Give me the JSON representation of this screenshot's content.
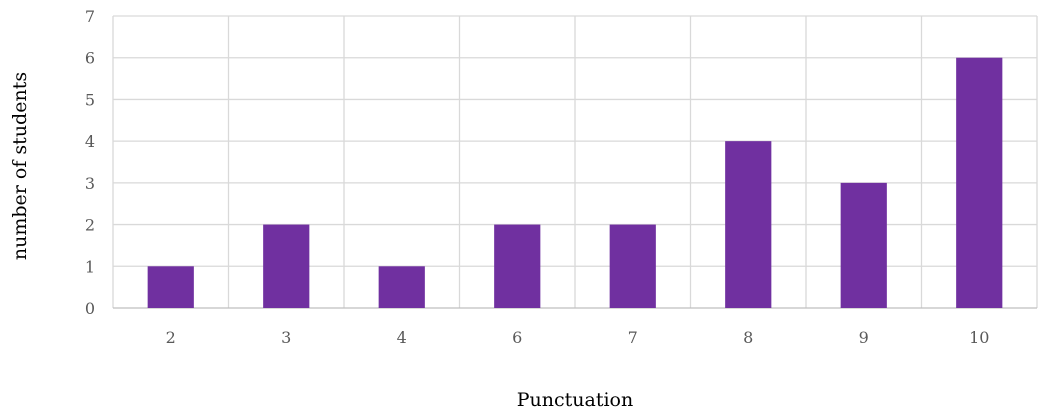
{
  "chart_data": {
    "type": "bar",
    "title": "",
    "xlabel": "Punctuation",
    "ylabel": "number of students",
    "categories": [
      "2",
      "3",
      "4",
      "6",
      "7",
      "8",
      "9",
      "10"
    ],
    "values": [
      1,
      2,
      1,
      2,
      2,
      4,
      3,
      6
    ],
    "ylim": [
      0,
      7
    ],
    "yticks": [
      "0",
      "1",
      "2",
      "3",
      "4",
      "5",
      "6",
      "7"
    ],
    "grid": true,
    "legend": "none",
    "bar_color": "#7030a0"
  }
}
